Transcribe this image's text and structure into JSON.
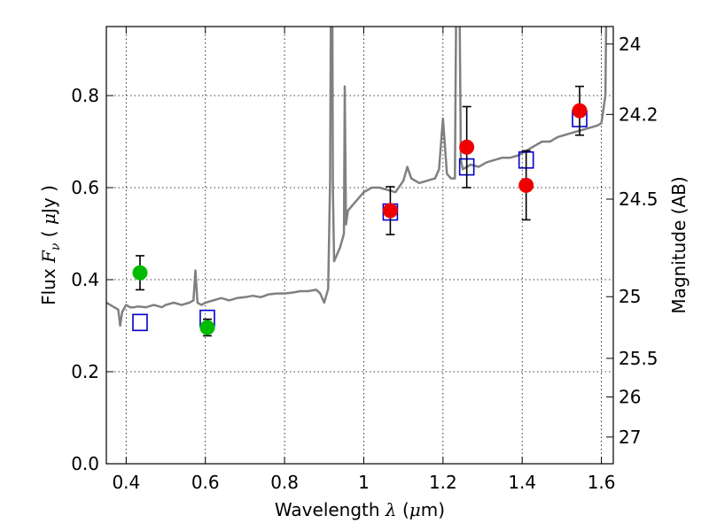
{
  "chart_data": {
    "type": "scatter",
    "title": "",
    "xlabel": {
      "prefix": "Wavelength  ",
      "symbol": "λ",
      "unit_open": " (",
      "unit_mu": "μ",
      "unit_rest": "m)"
    },
    "ylabel": {
      "prefix": "Flux  ",
      "symbol": "F",
      "subscript": "ν",
      "unit_open": "  ( ",
      "unit_mu": "μ",
      "unit_rest": "Jy )"
    },
    "y2label": "Magnitude (AB)",
    "xlim": [
      0.35,
      1.63
    ],
    "ylim": [
      0.0,
      0.95
    ],
    "xticks": [
      0.4,
      0.6,
      0.8,
      1.0,
      1.2,
      1.4,
      1.6
    ],
    "xtick_labels": [
      "0.4",
      "0.6",
      "0.8",
      "1",
      "1.2",
      "1.4",
      "1.6"
    ],
    "yticks": [
      0.0,
      0.2,
      0.4,
      0.6,
      0.8
    ],
    "ytick_labels": [
      "0.0",
      "0.2",
      "0.4",
      "0.6",
      "0.8"
    ],
    "y2ticks": [
      {
        "label": "24",
        "flux": 0.912
      },
      {
        "label": "24.2",
        "flux": 0.759
      },
      {
        "label": "24.5",
        "flux": 0.575
      },
      {
        "label": "25",
        "flux": 0.363
      },
      {
        "label": "25.5",
        "flux": 0.229
      },
      {
        "label": "26",
        "flux": 0.145
      },
      {
        "label": "27",
        "flux": 0.058
      }
    ],
    "grid": true,
    "colors": {
      "template": "#808080",
      "model": "#0000cc",
      "observed_red": "#ee0000",
      "observed_green": "#00bb00",
      "errorbar": "#000000"
    },
    "series": [
      {
        "kind": "line",
        "points": [
          [
            0.35,
            0.35
          ],
          [
            0.36,
            0.345
          ],
          [
            0.37,
            0.34
          ],
          [
            0.38,
            0.335
          ],
          [
            0.385,
            0.3
          ],
          [
            0.39,
            0.33
          ],
          [
            0.4,
            0.345
          ],
          [
            0.41,
            0.34
          ],
          [
            0.42,
            0.34
          ],
          [
            0.43,
            0.342
          ],
          [
            0.45,
            0.34
          ],
          [
            0.47,
            0.345
          ],
          [
            0.49,
            0.34
          ],
          [
            0.5,
            0.345
          ],
          [
            0.52,
            0.35
          ],
          [
            0.54,
            0.345
          ],
          [
            0.56,
            0.35
          ],
          [
            0.57,
            0.355
          ],
          [
            0.575,
            0.42
          ],
          [
            0.58,
            0.35
          ],
          [
            0.59,
            0.345
          ],
          [
            0.6,
            0.35
          ],
          [
            0.62,
            0.355
          ],
          [
            0.64,
            0.36
          ],
          [
            0.66,
            0.355
          ],
          [
            0.68,
            0.36
          ],
          [
            0.7,
            0.362
          ],
          [
            0.72,
            0.365
          ],
          [
            0.74,
            0.362
          ],
          [
            0.76,
            0.368
          ],
          [
            0.78,
            0.37
          ],
          [
            0.8,
            0.37
          ],
          [
            0.82,
            0.372
          ],
          [
            0.84,
            0.375
          ],
          [
            0.86,
            0.375
          ],
          [
            0.88,
            0.378
          ],
          [
            0.89,
            0.37
          ],
          [
            0.9,
            0.35
          ],
          [
            0.91,
            0.38
          ],
          [
            0.915,
            0.62
          ],
          [
            0.918,
            1.2
          ],
          [
            0.92,
            1.2
          ],
          [
            0.922,
            0.6
          ],
          [
            0.925,
            0.44
          ],
          [
            0.94,
            0.47
          ],
          [
            0.95,
            0.5
          ],
          [
            0.952,
            0.82
          ],
          [
            0.955,
            0.52
          ],
          [
            0.96,
            0.55
          ],
          [
            0.98,
            0.57
          ],
          [
            1.0,
            0.59
          ],
          [
            1.02,
            0.6
          ],
          [
            1.04,
            0.6
          ],
          [
            1.06,
            0.595
          ],
          [
            1.08,
            0.59
          ],
          [
            1.1,
            0.615
          ],
          [
            1.11,
            0.645
          ],
          [
            1.12,
            0.62
          ],
          [
            1.14,
            0.61
          ],
          [
            1.16,
            0.615
          ],
          [
            1.18,
            0.62
          ],
          [
            1.19,
            0.64
          ],
          [
            1.2,
            0.75
          ],
          [
            1.21,
            0.63
          ],
          [
            1.22,
            0.62
          ],
          [
            1.23,
            0.62
          ],
          [
            1.235,
            1.2
          ],
          [
            1.24,
            1.2
          ],
          [
            1.245,
            0.66
          ],
          [
            1.25,
            0.64
          ],
          [
            1.27,
            0.65
          ],
          [
            1.29,
            0.645
          ],
          [
            1.31,
            0.655
          ],
          [
            1.33,
            0.66
          ],
          [
            1.35,
            0.665
          ],
          [
            1.37,
            0.665
          ],
          [
            1.39,
            0.67
          ],
          [
            1.41,
            0.68
          ],
          [
            1.43,
            0.69
          ],
          [
            1.45,
            0.7
          ],
          [
            1.47,
            0.7
          ],
          [
            1.49,
            0.71
          ],
          [
            1.51,
            0.715
          ],
          [
            1.53,
            0.72
          ],
          [
            1.55,
            0.725
          ],
          [
            1.57,
            0.73
          ],
          [
            1.59,
            0.735
          ],
          [
            1.6,
            0.74
          ],
          [
            1.61,
            0.8
          ],
          [
            1.615,
            1.2
          ],
          [
            1.63,
            1.2
          ]
        ]
      },
      {
        "kind": "model-squares",
        "points": [
          [
            0.435,
            0.307
          ],
          [
            0.605,
            0.316
          ],
          [
            1.067,
            0.547
          ],
          [
            1.26,
            0.645
          ],
          [
            1.41,
            0.66
          ],
          [
            1.545,
            0.75
          ]
        ]
      },
      {
        "kind": "observed",
        "points": [
          {
            "x": 0.435,
            "y": 0.415,
            "err": 0.037,
            "color": "green"
          },
          {
            "x": 0.605,
            "y": 0.296,
            "err": 0.018,
            "color": "green"
          },
          {
            "x": 1.067,
            "y": 0.55,
            "err": 0.052,
            "color": "red"
          },
          {
            "x": 1.26,
            "y": 0.688,
            "err": 0.088,
            "color": "red"
          },
          {
            "x": 1.41,
            "y": 0.605,
            "err": 0.075,
            "color": "red"
          },
          {
            "x": 1.545,
            "y": 0.767,
            "err": 0.053,
            "color": "red"
          }
        ]
      }
    ]
  }
}
